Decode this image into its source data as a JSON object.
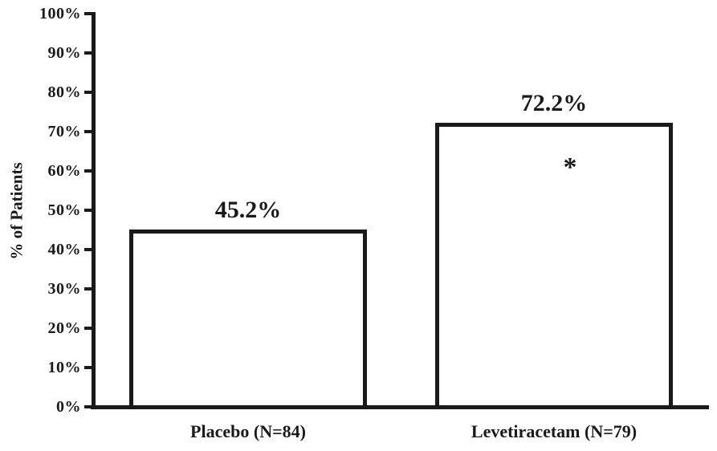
{
  "chart_data": {
    "type": "bar",
    "title": "",
    "xlabel": "",
    "ylabel": "% of Patients",
    "categories": [
      "Placebo (N=84)",
      "Levetiracetam (N=79)"
    ],
    "values": [
      45.2,
      72.2
    ],
    "value_labels": [
      "45.2%",
      "72.2%"
    ],
    "annotations": [
      null,
      "*"
    ],
    "ylim": [
      0,
      100
    ],
    "ytick_values": [
      0,
      10,
      20,
      30,
      40,
      50,
      60,
      70,
      80,
      90,
      100
    ],
    "ytick_labels": [
      "0%",
      "10%",
      "20%",
      "30%",
      "40%",
      "50%",
      "60%",
      "70%",
      "80%",
      "90%",
      "100%"
    ],
    "grid": "off",
    "legend": "none",
    "colors": {
      "background": "#ffffff",
      "ink": "#1a1a1a",
      "bar_fill": "#ffffff",
      "bar_border": "#1a1a1a"
    }
  }
}
